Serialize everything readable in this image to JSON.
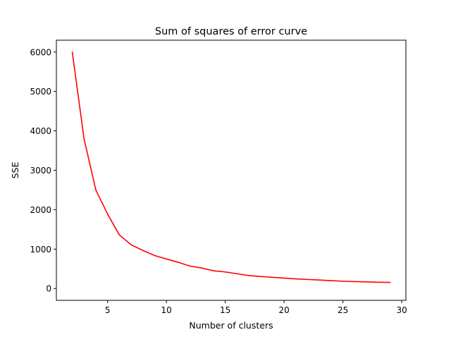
{
  "chart_data": {
    "type": "line",
    "title": "Sum of squares of error curve",
    "xlabel": "Number of clusters",
    "ylabel": "SSE",
    "xlim": [
      0.65,
      30.35
    ],
    "ylim": [
      -300,
      6300
    ],
    "xticks": [
      5,
      10,
      15,
      20,
      25,
      30
    ],
    "yticks": [
      0,
      1000,
      2000,
      3000,
      4000,
      5000,
      6000
    ],
    "grid": false,
    "series": [
      {
        "color": "#ff0000",
        "x": [
          2,
          3,
          4,
          5,
          6,
          7,
          8,
          9,
          10,
          11,
          12,
          13,
          14,
          15,
          16,
          17,
          18,
          19,
          20,
          21,
          22,
          23,
          24,
          25,
          26,
          27,
          28,
          29
        ],
        "y": [
          6000,
          3800,
          2500,
          1890,
          1360,
          1110,
          965,
          835,
          750,
          665,
          570,
          520,
          450,
          420,
          375,
          330,
          305,
          285,
          265,
          245,
          230,
          215,
          200,
          185,
          175,
          168,
          160,
          155
        ]
      }
    ]
  }
}
